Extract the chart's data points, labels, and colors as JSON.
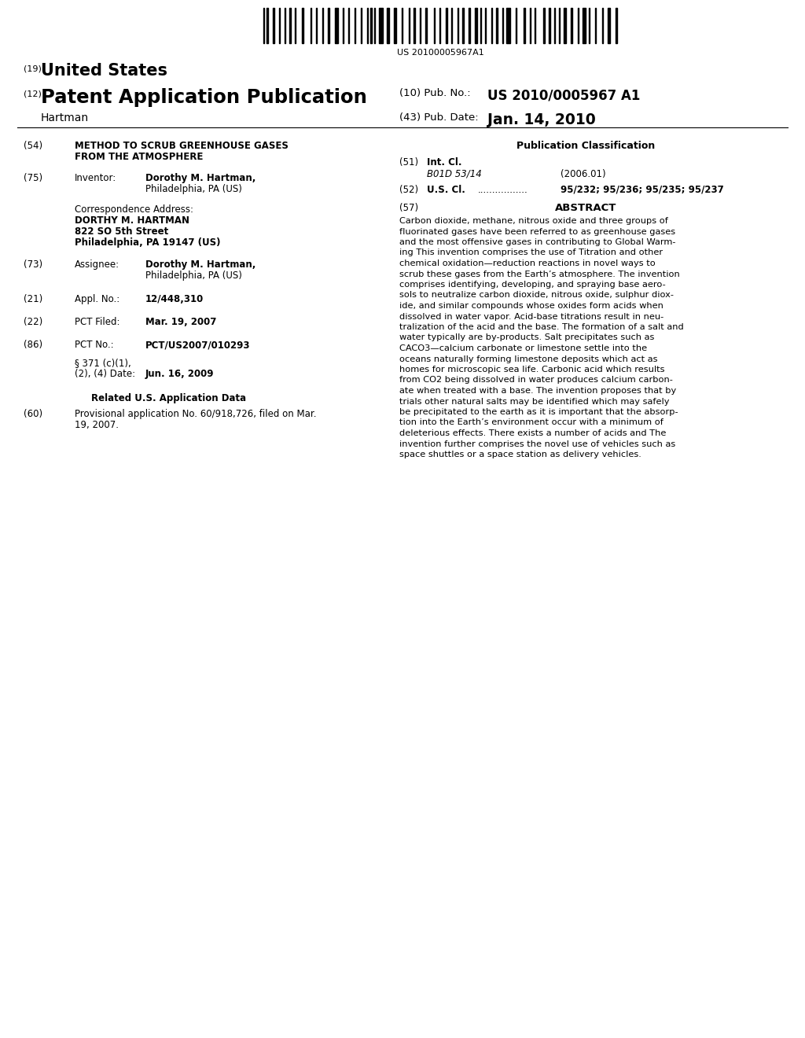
{
  "background_color": "#ffffff",
  "barcode_text": "US 20100005967A1",
  "header_19": "(19)",
  "header_us": "United States",
  "header_12": "(12)",
  "header_pub": "Patent Application Publication",
  "header_hartman": "Hartman",
  "header_10_label": "(10) Pub. No.:",
  "header_10_value": "US 2010/0005967 A1",
  "header_43_label": "(43) Pub. Date:",
  "header_43_value": "Jan. 14, 2010",
  "field_54_num": "(54)",
  "field_54_title1": "METHOD TO SCRUB GREENHOUSE GASES",
  "field_54_title2": "FROM THE ATMOSPHERE",
  "field_75_num": "(75)",
  "field_75_label": "Inventor:",
  "field_75_name": "Dorothy M. Hartman,",
  "field_75_city": "Philadelphia, PA (US)",
  "corr_label": "Correspondence Address:",
  "corr_name": "DORTHY M. HARTMAN",
  "corr_street": "822 SO 5th Street",
  "corr_city": "Philadelphia, PA 19147 (US)",
  "field_73_num": "(73)",
  "field_73_label": "Assignee:",
  "field_73_name": "Dorothy M. Hartman,",
  "field_73_city": "Philadelphia, PA (US)",
  "field_21_num": "(21)",
  "field_21_label": "Appl. No.:",
  "field_21_value": "12/448,310",
  "field_22_num": "(22)",
  "field_22_label": "PCT Filed:",
  "field_22_value": "Mar. 19, 2007",
  "field_86_num": "(86)",
  "field_86_label": "PCT No.:",
  "field_86_value": "PCT/US2007/010293",
  "field_86b1": "§ 371 (c)(1),",
  "field_86b2": "(2), (4) Date:",
  "field_86b2_value": "Jun. 16, 2009",
  "related_heading": "Related U.S. Application Data",
  "field_60_num": "(60)",
  "field_60_text1": "Provisional application No. 60/918,726, filed on Mar.",
  "field_60_text2": "19, 2007.",
  "pub_class_heading": "Publication Classification",
  "field_51_num": "(51)",
  "field_51_label": "Int. Cl.",
  "field_51_class": "B01D 53/14",
  "field_51_year": "(2006.01)",
  "field_52_num": "(52)",
  "field_52_label": "U.S. Cl.",
  "field_52_dots": ".................",
  "field_52_value": "95/232; 95/236; 95/235; 95/237",
  "field_57_num": "(57)",
  "field_57_label": "ABSTRACT",
  "abstract_lines": [
    "Carbon dioxide, methane, nitrous oxide and three groups of",
    "fluorinated gases have been referred to as greenhouse gases",
    "and the most offensive gases in contributing to Global Warm-",
    "ing This invention comprises the use of Titration and other",
    "chemical oxidation—reduction reactions in novel ways to",
    "scrub these gases from the Earth’s atmosphere. The invention",
    "comprises identifying, developing, and spraying base aero-",
    "sols to neutralize carbon dioxide, nitrous oxide, sulphur diox-",
    "ide, and similar compounds whose oxides form acids when",
    "dissolved in water vapor. Acid-base titrations result in neu-",
    "tralization of the acid and the base. The formation of a salt and",
    "water typically are by-products. Salt precipitates such as",
    "CACO3—calcium carbonate or limestone settle into the",
    "oceans naturally forming limestone deposits which act as",
    "homes for microscopic sea life. Carbonic acid which results",
    "from CO2 being dissolved in water produces calcium carbon-",
    "ate when treated with a base. The invention proposes that by",
    "trials other natural salts may be identified which may safely",
    "be precipitated to the earth as it is important that the absorp-",
    "tion into the Earth’s environment occur with a minimum of",
    "deleterious effects. There exists a number of acids and The",
    "invention further comprises the novel use of vehicles such as",
    "space shuttles or a space station as delivery vehicles."
  ]
}
